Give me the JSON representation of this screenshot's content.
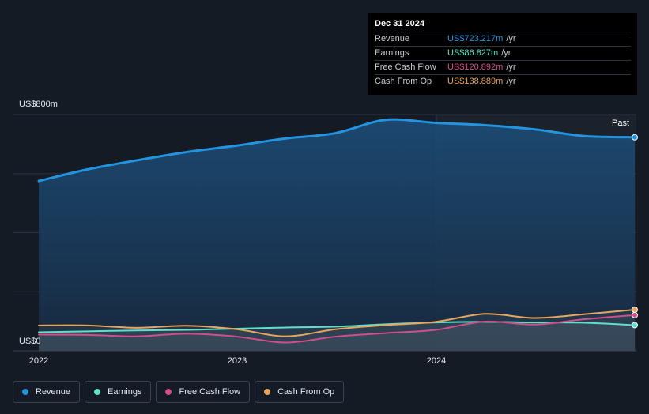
{
  "chart_data": {
    "type": "area",
    "y_unit_label_top": "US$800m",
    "y_unit_label_bottom": "US$0",
    "ylim": [
      0,
      800
    ],
    "xlim": [
      "2022-01-01",
      "2024-12-31"
    ],
    "x_ticks": [
      "2022",
      "2023",
      "2024"
    ],
    "past_label": "Past",
    "grid": true,
    "legend_position": "bottom-left",
    "series": [
      {
        "name": "Revenue",
        "color": "#2394df",
        "x": [
          "2022-01-01",
          "2022-03-31",
          "2022-06-30",
          "2022-09-30",
          "2022-12-31",
          "2023-03-31",
          "2023-06-30",
          "2023-09-30",
          "2023-12-31",
          "2024-03-31",
          "2024-06-30",
          "2024-09-30",
          "2024-12-31"
        ],
        "values": [
          575,
          614,
          645,
          673,
          695,
          719,
          737,
          782,
          772,
          764,
          750,
          727,
          723
        ]
      },
      {
        "name": "Earnings",
        "color": "#5fe0c8",
        "x": [
          "2022-01-01",
          "2022-03-31",
          "2022-06-30",
          "2022-09-30",
          "2022-12-31",
          "2023-03-31",
          "2023-06-30",
          "2023-09-30",
          "2023-12-31",
          "2024-03-31",
          "2024-06-30",
          "2024-09-30",
          "2024-12-31"
        ],
        "values": [
          63,
          66,
          69,
          71,
          75,
          79,
          82,
          90,
          96,
          98,
          96,
          95,
          87
        ]
      },
      {
        "name": "Free Cash Flow",
        "color": "#d04f8b",
        "x": [
          "2022-01-01",
          "2022-03-31",
          "2022-06-30",
          "2022-09-30",
          "2022-12-31",
          "2023-03-31",
          "2023-06-30",
          "2023-09-30",
          "2023-12-31",
          "2024-03-31",
          "2024-06-30",
          "2024-09-30",
          "2024-12-31"
        ],
        "values": [
          55,
          54,
          49,
          58,
          48,
          28,
          48,
          60,
          71,
          99,
          89,
          107,
          121
        ]
      },
      {
        "name": "Cash From Op",
        "color": "#e8a55c",
        "x": [
          "2022-01-01",
          "2022-03-31",
          "2022-06-30",
          "2022-09-30",
          "2022-12-31",
          "2023-03-31",
          "2023-06-30",
          "2023-09-30",
          "2023-12-31",
          "2024-03-31",
          "2024-06-30",
          "2024-09-30",
          "2024-12-31"
        ],
        "values": [
          86,
          86,
          78,
          85,
          73,
          49,
          73,
          87,
          98,
          125,
          111,
          124,
          139
        ]
      }
    ]
  },
  "tooltip": {
    "date": "Dec 31 2024",
    "unit": "/yr",
    "rows": [
      {
        "name": "Revenue",
        "value": "US$723.217m",
        "color": "#2394df"
      },
      {
        "name": "Earnings",
        "value": "US$86.827m",
        "color": "#5fe0c8"
      },
      {
        "name": "Free Cash Flow",
        "value": "US$120.892m",
        "color": "#d04f8b"
      },
      {
        "name": "Cash From Op",
        "value": "US$138.889m",
        "color": "#e8a55c"
      }
    ]
  },
  "legend": [
    {
      "label": "Revenue",
      "color": "#2394df"
    },
    {
      "label": "Earnings",
      "color": "#5fe0c8"
    },
    {
      "label": "Free Cash Flow",
      "color": "#d04f8b"
    },
    {
      "label": "Cash From Op",
      "color": "#e8a55c"
    }
  ]
}
